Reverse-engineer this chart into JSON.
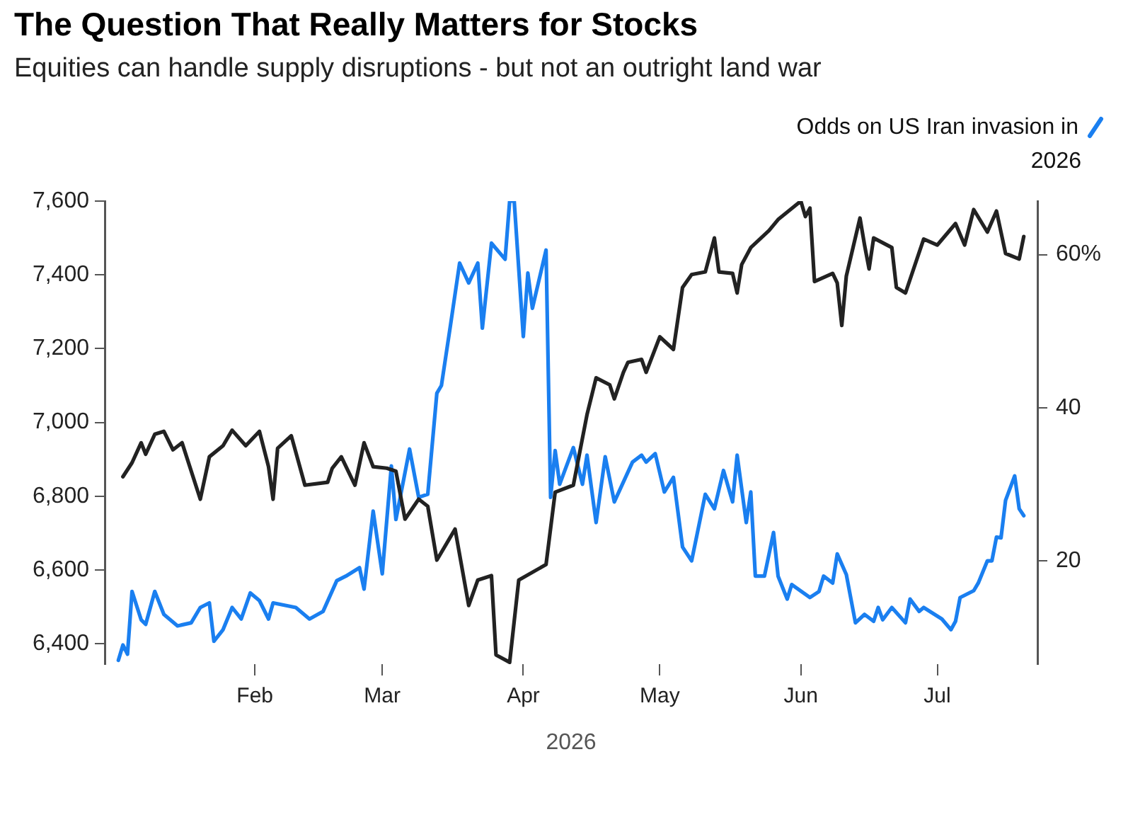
{
  "chart_data": {
    "type": "line",
    "title": "The Question That Really Matters for Stocks",
    "subtitle": "Equities can handle supply disruptions - but not an outright land war",
    "xlabel": "2026",
    "xlim": [
      "2025-12-30",
      "2026-07-23"
    ],
    "xticks": [
      {
        "value": "2026-02-01",
        "label": "Feb"
      },
      {
        "value": "2026-03-01",
        "label": "Mar"
      },
      {
        "value": "2026-04-01",
        "label": "Apr"
      },
      {
        "value": "2026-05-01",
        "label": "May"
      },
      {
        "value": "2026-06-01",
        "label": "Jun"
      },
      {
        "value": "2026-07-01",
        "label": "Jul"
      }
    ],
    "ylim": [
      6345,
      7600
    ],
    "yticks": [
      {
        "value": 6400,
        "label": "6,400"
      },
      {
        "value": 6600,
        "label": "6,600"
      },
      {
        "value": 6800,
        "label": "6,800"
      },
      {
        "value": 7000,
        "label": "7,000"
      },
      {
        "value": 7200,
        "label": "7,200"
      },
      {
        "value": 7400,
        "label": "7,400"
      },
      {
        "value": 7600,
        "label": "7,600"
      }
    ],
    "y2lim": [
      6.5,
      67
    ],
    "y2ticks": [
      20,
      40,
      {
        "value": 60,
        "label": "60%"
      }
    ],
    "grid": false,
    "legend": "top",
    "series": [
      {
        "color": "#222222",
        "x": [
          "2026-01-03",
          "2026-01-05",
          "2026-01-07",
          "2026-01-08",
          "2026-01-10",
          "2026-01-12",
          "2026-01-14",
          "2026-01-16",
          "2026-01-20",
          "2026-01-22",
          "2026-01-25",
          "2026-01-27",
          "2026-01-30",
          "2026-02-02",
          "2026-02-04",
          "2026-02-05",
          "2026-02-06",
          "2026-02-09",
          "2026-02-12",
          "2026-02-17",
          "2026-02-18",
          "2026-02-20",
          "2026-02-23",
          "2026-02-25",
          "2026-02-27",
          "2026-03-02",
          "2026-03-04",
          "2026-03-06",
          "2026-03-09",
          "2026-03-11",
          "2026-03-13",
          "2026-03-17",
          "2026-03-20",
          "2026-03-22",
          "2026-03-25",
          "2026-03-26",
          "2026-03-29",
          "2026-03-31",
          "2026-04-06",
          "2026-04-08",
          "2026-04-12",
          "2026-04-15",
          "2026-04-17",
          "2026-04-20",
          "2026-04-21",
          "2026-04-23",
          "2026-04-24",
          "2026-04-27",
          "2026-04-28",
          "2026-05-01",
          "2026-05-04",
          "2026-05-06",
          "2026-05-08",
          "2026-05-11",
          "2026-05-13",
          "2026-05-14",
          "2026-05-17",
          "2026-05-18",
          "2026-05-19",
          "2026-05-21",
          "2026-05-25",
          "2026-05-27",
          "2026-06-01",
          "2026-06-02",
          "2026-06-03",
          "2026-06-04",
          "2026-06-08",
          "2026-06-09",
          "2026-06-10",
          "2026-06-11",
          "2026-06-14",
          "2026-06-15",
          "2026-06-16",
          "2026-06-17",
          "2026-06-21",
          "2026-06-22",
          "2026-06-24",
          "2026-06-28",
          "2026-07-01",
          "2026-07-05",
          "2026-07-07",
          "2026-07-09",
          "2026-07-12",
          "2026-07-14",
          "2026-07-16",
          "2026-07-19",
          "2026-07-20"
        ],
        "values": [
          6853,
          6891,
          6945,
          6914,
          6968,
          6976,
          6926,
          6945,
          6792,
          6907,
          6937,
          6979,
          6937,
          6976,
          6880,
          6792,
          6930,
          6964,
          6830,
          6838,
          6876,
          6907,
          6830,
          6945,
          6880,
          6876,
          6868,
          6738,
          6792,
          6773,
          6627,
          6711,
          6504,
          6573,
          6585,
          6370,
          6350,
          6573,
          6615,
          6811,
          6830,
          7021,
          7121,
          7102,
          7064,
          7136,
          7163,
          7171,
          7136,
          7232,
          7198,
          7366,
          7401,
          7408,
          7500,
          7408,
          7404,
          7351,
          7428,
          7474,
          7520,
          7550,
          7600,
          7558,
          7581,
          7382,
          7404,
          7378,
          7263,
          7397,
          7554,
          7481,
          7416,
          7500,
          7474,
          7366,
          7351,
          7497,
          7481,
          7539,
          7481,
          7577,
          7516,
          7573,
          7458,
          7443,
          7504
        ]
      },
      {
        "name": "Odds on US Iran invasion in 2026",
        "color": "#1a7ff0",
        "axis": "y2",
        "x": [
          "2026-01-02",
          "2026-01-03",
          "2026-01-04",
          "2026-01-05",
          "2026-01-07",
          "2026-01-08",
          "2026-01-10",
          "2026-01-12",
          "2026-01-15",
          "2026-01-18",
          "2026-01-20",
          "2026-01-22",
          "2026-01-23",
          "2026-01-25",
          "2026-01-27",
          "2026-01-29",
          "2026-01-31",
          "2026-02-02",
          "2026-02-04",
          "2026-02-05",
          "2026-02-10",
          "2026-02-13",
          "2026-02-16",
          "2026-02-19",
          "2026-02-21",
          "2026-02-24",
          "2026-02-25",
          "2026-02-27",
          "2026-03-01",
          "2026-03-03",
          "2026-03-04",
          "2026-03-07",
          "2026-03-09",
          "2026-03-11",
          "2026-03-13",
          "2026-03-14",
          "2026-03-16",
          "2026-03-18",
          "2026-03-20",
          "2026-03-22",
          "2026-03-23",
          "2026-03-25",
          "2026-03-28",
          "2026-03-29",
          "2026-03-30",
          "2026-04-01",
          "2026-04-02",
          "2026-04-03",
          "2026-04-06",
          "2026-04-07",
          "2026-04-08",
          "2026-04-09",
          "2026-04-12",
          "2026-04-14",
          "2026-04-15",
          "2026-04-17",
          "2026-04-19",
          "2026-04-21",
          "2026-04-25",
          "2026-04-27",
          "2026-04-28",
          "2026-04-30",
          "2026-05-02",
          "2026-05-04",
          "2026-05-06",
          "2026-05-08",
          "2026-05-11",
          "2026-05-13",
          "2026-05-15",
          "2026-05-17",
          "2026-05-18",
          "2026-05-20",
          "2026-05-21",
          "2026-05-22",
          "2026-05-24",
          "2026-05-26",
          "2026-05-27",
          "2026-05-29",
          "2026-05-30",
          "2026-06-03",
          "2026-06-05",
          "2026-06-06",
          "2026-06-08",
          "2026-06-09",
          "2026-06-11",
          "2026-06-13",
          "2026-06-15",
          "2026-06-17",
          "2026-06-18",
          "2026-06-19",
          "2026-06-21",
          "2026-06-24",
          "2026-06-25",
          "2026-06-27",
          "2026-06-28",
          "2026-07-02",
          "2026-07-04",
          "2026-07-05",
          "2026-07-06",
          "2026-07-09",
          "2026-07-10",
          "2026-07-12",
          "2026-07-13",
          "2026-07-14",
          "2026-07-15",
          "2026-07-16",
          "2026-07-18",
          "2026-07-19",
          "2026-07-20"
        ],
        "values": [
          7,
          9.0,
          7.8,
          16.0,
          12.3,
          11.7,
          16.0,
          13.0,
          11.5,
          11.9,
          13.9,
          14.5,
          9.5,
          11.0,
          13.9,
          12.4,
          15.8,
          14.8,
          12.4,
          14.5,
          13.9,
          12.4,
          13.4,
          17.4,
          18.0,
          19.1,
          16.3,
          26.5,
          18.3,
          32.4,
          25.4,
          34.6,
          28.3,
          28.7,
          41.9,
          42.9,
          50.8,
          58.9,
          56.3,
          58.9,
          50.4,
          61.5,
          59.4,
          67,
          67,
          49.3,
          57.6,
          53.0,
          60.6,
          28.3,
          34.4,
          30.0,
          34.8,
          30.0,
          33.8,
          25.0,
          33.6,
          27.7,
          32.9,
          33.8,
          32.9,
          34.0,
          29.0,
          30.9,
          21.8,
          20.0,
          28.7,
          26.8,
          31.8,
          27.7,
          33.8,
          25.0,
          29.0,
          18.0,
          18.0,
          23.7,
          18.0,
          15.0,
          16.9,
          15.2,
          16.0,
          18.0,
          17.1,
          20.9,
          18.2,
          11.9,
          13.0,
          12.1,
          13.9,
          12.3,
          13.9,
          11.9,
          15.0,
          13.4,
          13.9,
          12.4,
          11.0,
          12.1,
          15.2,
          16.1,
          17.1,
          20.0,
          20.0,
          23.1,
          23.0,
          27.9,
          31.1,
          26.8,
          25.9
        ]
      }
    ]
  }
}
